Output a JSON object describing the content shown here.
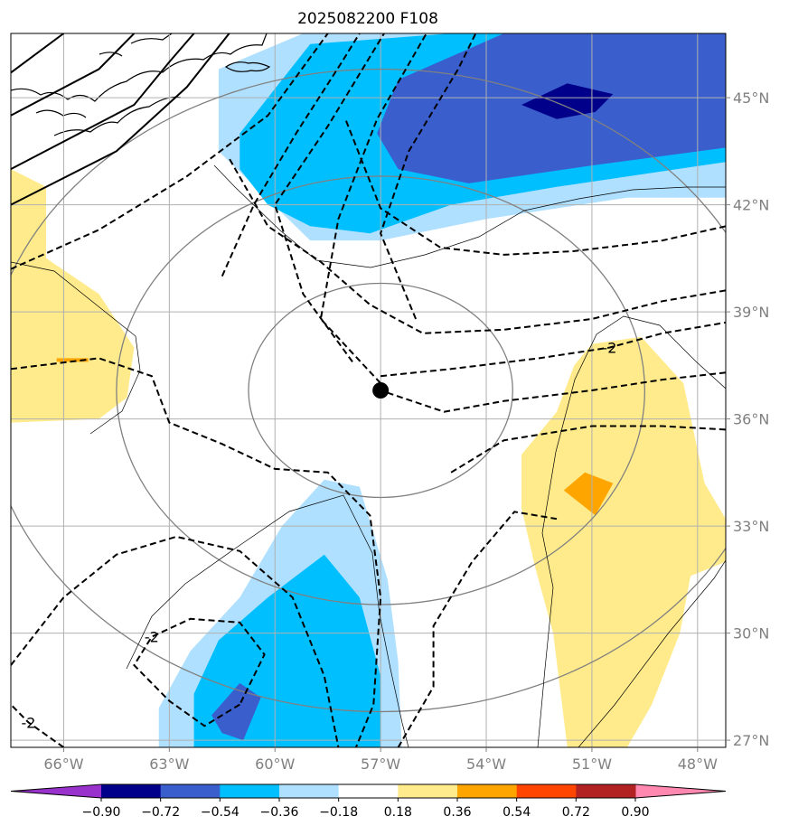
{
  "chart_data": {
    "type": "contour-map",
    "title": "2025082200 F108",
    "xlim": [
      -67.5,
      -47.2
    ],
    "ylim": [
      26.8,
      46.8
    ],
    "x_ticks": [
      -66,
      -63,
      -60,
      -57,
      -54,
      -51,
      -48
    ],
    "x_tick_labels": [
      "66°W",
      "63°W",
      "60°W",
      "57°W",
      "54°W",
      "51°W",
      "48°W"
    ],
    "y_ticks": [
      27,
      30,
      33,
      36,
      39,
      42,
      45
    ],
    "y_tick_labels": [
      "27°N",
      "30°N",
      "33°N",
      "36°N",
      "39°N",
      "42°N",
      "45°N"
    ],
    "grid": true,
    "center_marker": {
      "lon": -57.0,
      "lat": 36.8
    },
    "range_rings_deg": [
      3,
      6,
      9
    ],
    "colorbar": {
      "orientation": "horizontal",
      "extend": "both",
      "levels": [
        -0.9,
        -0.72,
        -0.54,
        -0.36,
        -0.18,
        0.18,
        0.36,
        0.54,
        0.72,
        0.9
      ],
      "level_labels": [
        "−0.90",
        "−0.72",
        "−0.54",
        "−0.36",
        "−0.18",
        "0.18",
        "0.36",
        "0.54",
        "0.72",
        "0.90"
      ],
      "colors": [
        "#9932cc",
        "#00008b",
        "#3a5fcd",
        "#00bfff",
        "#b0e0ff",
        "#ffffff",
        "#ffeb8c",
        "#ffa500",
        "#ff4500",
        "#b22222",
        "#ff88b0"
      ]
    },
    "filled_regions": [
      {
        "level_index": 4,
        "polygon": [
          [
            -61.6,
            45.8
          ],
          [
            -59.2,
            46.8
          ],
          [
            -51.0,
            46.8
          ],
          [
            -47.2,
            46.8
          ],
          [
            -47.2,
            42.2
          ],
          [
            -50,
            42.2
          ],
          [
            -54,
            41.6
          ],
          [
            -57,
            41.0
          ],
          [
            -59.0,
            41.0
          ],
          [
            -61.6,
            43.5
          ]
        ]
      },
      {
        "level_index": 3,
        "polygon": [
          [
            -61.0,
            44.0
          ],
          [
            -59.0,
            46.5
          ],
          [
            -55,
            46.8
          ],
          [
            -47.2,
            46.8
          ],
          [
            -47.2,
            43.2
          ],
          [
            -52,
            42.5
          ],
          [
            -55,
            42.0
          ],
          [
            -57.3,
            41.2
          ],
          [
            -59.0,
            41.4
          ],
          [
            -60.2,
            42.0
          ],
          [
            -61,
            43.0
          ]
        ]
      },
      {
        "level_index": 2,
        "polygon": [
          [
            -57.1,
            44.0
          ],
          [
            -56.5,
            45.5
          ],
          [
            -53.5,
            46.8
          ],
          [
            -47.2,
            46.8
          ],
          [
            -47.2,
            43.6
          ],
          [
            -51,
            43.1
          ],
          [
            -54.5,
            42.6
          ],
          [
            -56.5,
            43.0
          ]
        ]
      },
      {
        "level_index": 1,
        "polygon": [
          [
            -53.0,
            44.8
          ],
          [
            -51.7,
            45.4
          ],
          [
            -50.4,
            45.1
          ],
          [
            -50.9,
            44.6
          ],
          [
            -52.0,
            44.4
          ]
        ]
      },
      {
        "level_index": 4,
        "polygon": [
          [
            -63.3,
            27.9
          ],
          [
            -62.4,
            29.5
          ],
          [
            -61.0,
            31.0
          ],
          [
            -59.8,
            33.0
          ],
          [
            -58.6,
            34.3
          ],
          [
            -57.6,
            34.1
          ],
          [
            -56.8,
            31.5
          ],
          [
            -56.5,
            29.2
          ],
          [
            -56.4,
            26.8
          ],
          [
            -63.3,
            26.8
          ]
        ]
      },
      {
        "level_index": 3,
        "polygon": [
          [
            -62.3,
            26.8
          ],
          [
            -62.3,
            28.3
          ],
          [
            -61.6,
            29.8
          ],
          [
            -60.2,
            31.0
          ],
          [
            -58.6,
            32.2
          ],
          [
            -57.6,
            31.0
          ],
          [
            -57.0,
            28.8
          ],
          [
            -57.0,
            26.8
          ]
        ]
      },
      {
        "level_index": 2,
        "polygon": [
          [
            -61.8,
            27.7
          ],
          [
            -61.0,
            28.6
          ],
          [
            -60.4,
            28.2
          ],
          [
            -60.9,
            27.0
          ],
          [
            -61.5,
            27.2
          ]
        ]
      },
      {
        "level_index": 6,
        "polygon": [
          [
            -67.5,
            43.0
          ],
          [
            -66.5,
            42.5
          ],
          [
            -66.5,
            40.5
          ],
          [
            -65.0,
            39.5
          ],
          [
            -64.0,
            38.0
          ],
          [
            -64.2,
            36.6
          ],
          [
            -65.0,
            36.0
          ],
          [
            -67.5,
            35.9
          ]
        ]
      },
      {
        "level_index": 7,
        "polygon": [
          [
            -66.2,
            37.7
          ],
          [
            -65.3,
            37.7
          ],
          [
            -65.3,
            37.6
          ],
          [
            -66.2,
            37.6
          ]
        ]
      },
      {
        "level_index": 6,
        "polygon": [
          [
            -51.0,
            38.1
          ],
          [
            -49.6,
            38.3
          ],
          [
            -48.4,
            37.0
          ],
          [
            -47.8,
            34.2
          ],
          [
            -47.2,
            33.2
          ],
          [
            -47.2,
            32.0
          ],
          [
            -48.2,
            31.6
          ],
          [
            -48.5,
            30.0
          ],
          [
            -49.3,
            28.0
          ],
          [
            -50.0,
            26.8
          ],
          [
            -51.7,
            26.8
          ],
          [
            -52.1,
            30.0
          ],
          [
            -52.6,
            31.8
          ],
          [
            -53.0,
            33.5
          ],
          [
            -53.0,
            35.0
          ],
          [
            -52.0,
            36.2
          ],
          [
            -51.5,
            37.5
          ]
        ]
      },
      {
        "level_index": 7,
        "polygon": [
          [
            -51.2,
            34.5
          ],
          [
            -50.4,
            34.2
          ],
          [
            -50.9,
            33.3
          ],
          [
            -51.8,
            34.0
          ]
        ]
      }
    ],
    "dashed_contours": [
      {
        "label": null,
        "points": [
          [
            -67.5,
            40.2
          ],
          [
            -65.0,
            41.3
          ],
          [
            -62.5,
            42.8
          ],
          [
            -60.2,
            44.5
          ],
          [
            -58.5,
            46.8
          ]
        ]
      },
      {
        "label": null,
        "points": [
          [
            -61.5,
            40.0
          ],
          [
            -60.6,
            42.0
          ],
          [
            -59.4,
            44.0
          ],
          [
            -58.1,
            46.0
          ],
          [
            -57.6,
            46.8
          ]
        ]
      },
      {
        "label": null,
        "points": [
          [
            -57.8,
            37.6
          ],
          [
            -59.2,
            39.5
          ],
          [
            -60.0,
            42.0
          ],
          [
            -58.5,
            44.2
          ],
          [
            -56.9,
            46.8
          ]
        ]
      },
      {
        "label": null,
        "points": [
          [
            -57.0,
            37.0
          ],
          [
            -58.7,
            38.8
          ],
          [
            -58.2,
            41.6
          ],
          [
            -57.1,
            44.4
          ],
          [
            -55.7,
            46.8
          ]
        ]
      },
      {
        "label": null,
        "points": [
          [
            -56.0,
            38.8
          ],
          [
            -57.0,
            41.2
          ],
          [
            -56.2,
            43.5
          ],
          [
            -54.8,
            45.8
          ],
          [
            -54.3,
            46.8
          ]
        ]
      },
      {
        "label": null,
        "points": [
          [
            -67.5,
            37.4
          ],
          [
            -65.0,
            37.7
          ],
          [
            -63.5,
            37.2
          ],
          [
            -63.0,
            35.9
          ],
          [
            -61.5,
            35.3
          ],
          [
            -60.0,
            34.6
          ],
          [
            -58.5,
            34.5
          ],
          [
            -57.3,
            33.3
          ],
          [
            -57.0,
            31.0
          ],
          [
            -57.2,
            28.0
          ],
          [
            -57.7,
            26.8
          ]
        ]
      },
      {
        "label": null,
        "points": [
          [
            -56.5,
            26.8
          ],
          [
            -55.5,
            28.5
          ],
          [
            -55.5,
            30.2
          ],
          [
            -54.4,
            32.0
          ],
          [
            -53.2,
            33.4
          ],
          [
            -52.0,
            33.2
          ]
        ]
      },
      {
        "label": "-2",
        "points": [
          [
            -57.0,
            37.2
          ],
          [
            -55.0,
            37.4
          ],
          [
            -52.5,
            37.7
          ],
          [
            -50.5,
            38.0
          ],
          [
            -49.0,
            38.4
          ],
          [
            -47.2,
            38.7
          ]
        ]
      },
      {
        "label": null,
        "points": [
          [
            -47.2,
            37.3
          ],
          [
            -49.0,
            37.1
          ],
          [
            -51.0,
            36.8
          ],
          [
            -53.5,
            36.5
          ],
          [
            -55.2,
            36.2
          ],
          [
            -57.0,
            36.8
          ]
        ]
      },
      {
        "label": null,
        "points": [
          [
            -55.0,
            34.5
          ],
          [
            -53.5,
            35.4
          ],
          [
            -51.0,
            35.8
          ],
          [
            -49.0,
            35.8
          ],
          [
            -47.2,
            35.7
          ]
        ]
      },
      {
        "label": null,
        "points": [
          [
            -67.5,
            29.1
          ],
          [
            -66.0,
            31.0
          ],
          [
            -64.5,
            32.2
          ],
          [
            -62.8,
            32.7
          ],
          [
            -61.0,
            32.3
          ],
          [
            -59.5,
            31.0
          ],
          [
            -58.6,
            28.8
          ],
          [
            -58.2,
            26.8
          ]
        ]
      },
      {
        "label": "-2",
        "points": [
          [
            -61.0,
            28.0
          ],
          [
            -62.0,
            27.4
          ],
          [
            -63.0,
            28.1
          ],
          [
            -64.0,
            29.1
          ],
          [
            -63.5,
            29.9
          ],
          [
            -62.4,
            30.4
          ],
          [
            -61.0,
            30.3
          ],
          [
            -60.3,
            29.4
          ],
          [
            -61.0,
            28.0
          ]
        ]
      },
      {
        "label": "-2",
        "points": [
          [
            -66.0,
            26.8
          ],
          [
            -67.0,
            27.5
          ],
          [
            -67.5,
            28.0
          ]
        ]
      },
      {
        "label": null,
        "points": [
          [
            -47.2,
            39.6
          ],
          [
            -49.0,
            39.3
          ],
          [
            -51.0,
            38.8
          ],
          [
            -53.5,
            38.5
          ],
          [
            -55.8,
            38.4
          ],
          [
            -57.3,
            39.2
          ],
          [
            -58.7,
            40.4
          ],
          [
            -60.2,
            41.4
          ],
          [
            -61.3,
            43.3
          ]
        ]
      },
      {
        "label": null,
        "points": [
          [
            -47.2,
            41.4
          ],
          [
            -49.0,
            41.0
          ],
          [
            -51.5,
            40.7
          ],
          [
            -53.5,
            40.6
          ],
          [
            -55.3,
            40.8
          ],
          [
            -57.0,
            41.9
          ],
          [
            -58.0,
            44.4
          ]
        ]
      }
    ],
    "solid_contours": [
      {
        "points": [
          [
            -67.5,
            42.0
          ],
          [
            -64.5,
            43.5
          ],
          [
            -62.5,
            45.3
          ],
          [
            -61.3,
            46.8
          ]
        ]
      },
      {
        "points": [
          [
            -67.5,
            43.0
          ],
          [
            -64.0,
            44.8
          ],
          [
            -63.0,
            46.0
          ],
          [
            -62.3,
            46.8
          ]
        ]
      },
      {
        "points": [
          [
            -67.5,
            44.5
          ],
          [
            -65.0,
            45.8
          ],
          [
            -64.0,
            46.8
          ]
        ]
      },
      {
        "points": [
          [
            -67.5,
            45.7
          ],
          [
            -66.0,
            46.8
          ]
        ]
      }
    ]
  }
}
